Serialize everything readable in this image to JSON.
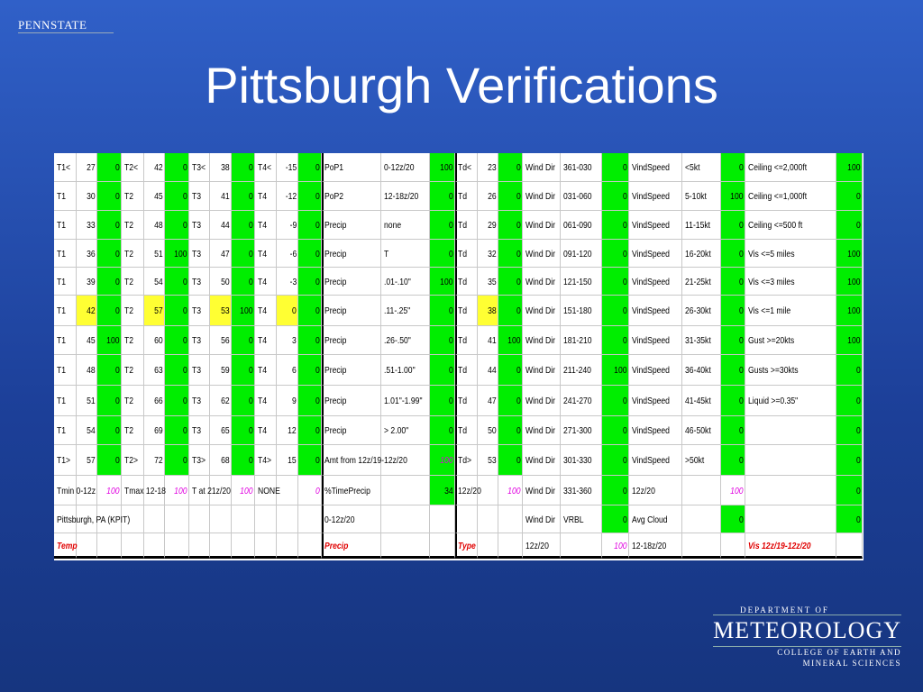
{
  "header": {
    "logo": "PENNSTATE",
    "title": "Pittsburgh Verifications"
  },
  "table": {
    "rows": [
      [
        "T1<",
        27,
        0,
        "T2<",
        42,
        0,
        "T3<",
        38,
        0,
        "T4<",
        -15,
        0,
        "PoP1",
        "0-12z/20",
        100,
        "Td<",
        23,
        0,
        "Wind Dir",
        "361-030",
        0,
        "VindSpeed",
        "<5kt",
        0,
        "Ceiling <=2,000ft",
        100
      ],
      [
        "T1",
        30,
        0,
        "T2",
        45,
        0,
        "T3",
        41,
        0,
        "T4",
        -12,
        0,
        "PoP2",
        "12-18z/20",
        0,
        "Td",
        26,
        0,
        "Wind Dir",
        "031-060",
        0,
        "VindSpeed",
        "5-10kt",
        100,
        "Ceiling <=1,000ft",
        0
      ],
      [
        "T1",
        33,
        0,
        "T2",
        48,
        0,
        "T3",
        44,
        0,
        "T4",
        -9,
        0,
        "Precip",
        "none",
        0,
        "Td",
        29,
        0,
        "Wind Dir",
        "061-090",
        0,
        "VindSpeed",
        "11-15kt",
        0,
        "Ceiling <=500 ft",
        0
      ],
      [
        "T1",
        36,
        0,
        "T2",
        51,
        100,
        "T3",
        47,
        0,
        "T4",
        -6,
        0,
        "Precip",
        "T",
        0,
        "Td",
        32,
        0,
        "Wind Dir",
        "091-120",
        0,
        "VindSpeed",
        "16-20kt",
        0,
        "Vis <=5 miles",
        100
      ],
      [
        "T1",
        39,
        0,
        "T2",
        54,
        0,
        "T3",
        50,
        0,
        "T4",
        -3,
        0,
        "Precip",
        ".01-.10\"",
        100,
        "Td",
        35,
        0,
        "Wind Dir",
        "121-150",
        0,
        "VindSpeed",
        "21-25kt",
        0,
        "Vis <=3 miles",
        100
      ],
      [
        "T1",
        42,
        0,
        "T2",
        57,
        0,
        "T3",
        53,
        100,
        "T4",
        0,
        0,
        "Precip",
        ".11-.25\"",
        0,
        "Td",
        38,
        0,
        "Wind Dir",
        "151-180",
        0,
        "VindSpeed",
        "26-30kt",
        0,
        "Vis <=1 mile",
        100
      ],
      [
        "T1",
        45,
        100,
        "T2",
        60,
        0,
        "T3",
        56,
        0,
        "T4",
        3,
        0,
        "Precip",
        ".26-.50\"",
        0,
        "Td",
        41,
        100,
        "Wind Dir",
        "181-210",
        0,
        "VindSpeed",
        "31-35kt",
        0,
        "Gust >=20kts",
        100
      ],
      [
        "T1",
        48,
        0,
        "T2",
        63,
        0,
        "T3",
        59,
        0,
        "T4",
        6,
        0,
        "Precip",
        ".51-1.00\"",
        0,
        "Td",
        44,
        0,
        "Wind Dir",
        "211-240",
        100,
        "VindSpeed",
        "36-40kt",
        0,
        "Gusts >=30kts",
        0
      ],
      [
        "T1",
        51,
        0,
        "T2",
        66,
        0,
        "T3",
        62,
        0,
        "T4",
        9,
        0,
        "Precip",
        "1.01\"-1.99\"",
        0,
        "Td",
        47,
        0,
        "Wind Dir",
        "241-270",
        0,
        "VindSpeed",
        "41-45kt",
        0,
        "Liquid >=0.35\"",
        0
      ],
      [
        "T1",
        54,
        0,
        "T2",
        69,
        0,
        "T3",
        65,
        0,
        "T4",
        12,
        0,
        "Precip",
        "> 2.00\"",
        0,
        "Td",
        50,
        0,
        "Wind Dir",
        "271-300",
        0,
        "VindSpeed",
        "46-50kt",
        0,
        null,
        0
      ],
      [
        "T1>",
        57,
        0,
        "T2>",
        72,
        0,
        "T3>",
        68,
        0,
        "T4>",
        15,
        0,
        "Amt from 12z/19-12z/20",
        null,
        100,
        "Td>",
        53,
        0,
        "Wind Dir",
        "301-330",
        0,
        "VindSpeed",
        ">50kt",
        0,
        null,
        0
      ],
      [
        "Tmin 0-12z",
        null,
        100,
        "Tmax 12-18",
        null,
        100,
        "T at 21z/20",
        null,
        100,
        "NONE",
        null,
        0,
        "%TimePrecip",
        null,
        34,
        "12z/20",
        null,
        100,
        "Wind Dir",
        "331-360",
        0,
        "12z/20",
        null,
        100,
        null,
        0
      ],
      [
        "Pittsburgh, PA (KPIT)",
        null,
        null,
        null,
        null,
        null,
        null,
        null,
        null,
        null,
        null,
        null,
        "0-12z/20",
        null,
        null,
        null,
        null,
        null,
        "Wind Dir",
        "VRBL",
        0,
        "Avg Cloud",
        null,
        0,
        null,
        0
      ],
      [
        "Temp",
        null,
        null,
        null,
        null,
        null,
        null,
        null,
        null,
        null,
        null,
        null,
        "Precip",
        null,
        null,
        "Type",
        null,
        null,
        "12z/20",
        null,
        100,
        "12-18z/20",
        null,
        null,
        "Vis 12z/19-12z/20",
        null
      ]
    ]
  },
  "footer": {
    "department": "DEPARTMENT OF",
    "name": "METEOROLOGY",
    "college": [
      "COLLEGE OF EARTH AND",
      "MINERAL SCIENCES"
    ]
  }
}
